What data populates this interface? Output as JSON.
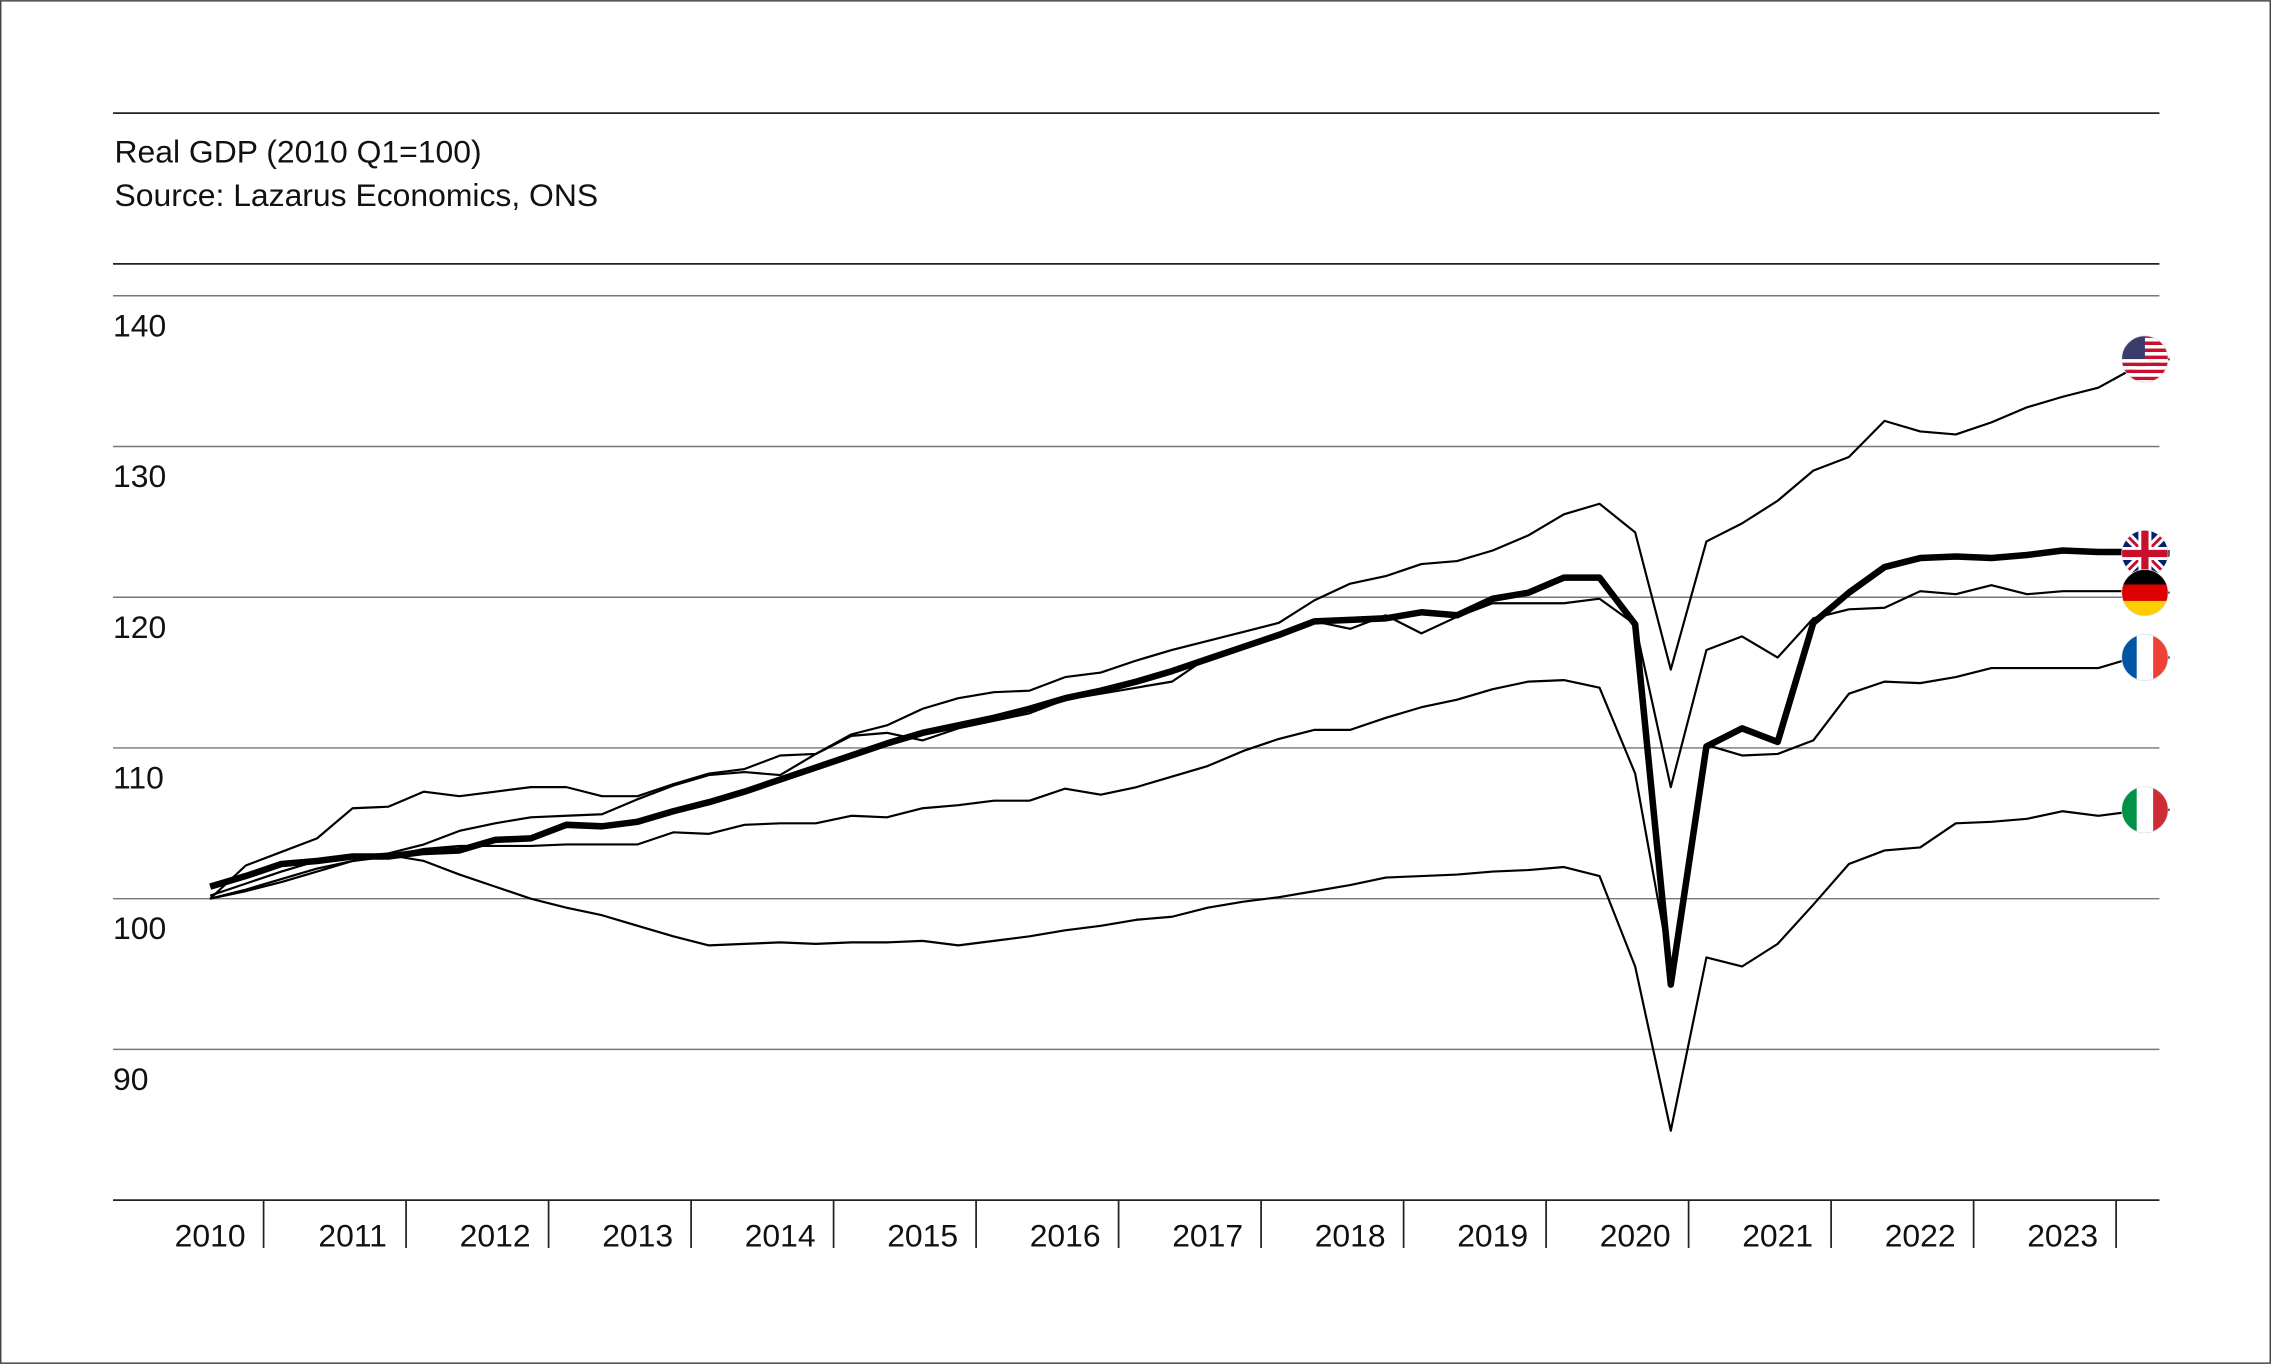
{
  "chart_data": {
    "type": "line",
    "title": "Real GDP (2010 Q1=100)",
    "subtitle": "Source: Lazarus Economics, ONS",
    "categories": [
      "2010",
      null,
      null,
      null,
      "2011",
      null,
      null,
      null,
      "2012",
      null,
      null,
      null,
      "2013",
      null,
      null,
      null,
      "2014",
      null,
      null,
      null,
      "2015",
      null,
      null,
      null,
      "2016",
      null,
      null,
      null,
      "2017",
      null,
      null,
      null,
      "2018",
      null,
      null,
      null,
      "2019",
      null,
      null,
      null,
      "2020",
      null,
      null,
      null,
      "2021",
      null,
      null,
      null,
      "2022",
      null,
      null,
      null,
      "2023",
      null,
      null,
      null
    ],
    "ylim": [
      80,
      140
    ],
    "yticks": [
      90,
      100,
      110,
      120,
      130,
      140
    ],
    "grid": true,
    "series": [
      {
        "color": "#000000",
        "line_width": 1.5,
        "values": [
          100.0,
          102.2,
          103.1,
          104.0,
          106.0,
          106.1,
          107.1,
          106.8,
          107.1,
          107.4,
          107.4,
          106.8,
          106.8,
          107.6,
          108.3,
          108.6,
          109.5,
          109.6,
          110.9,
          111.5,
          112.6,
          113.3,
          113.7,
          113.8,
          114.7,
          115.0,
          115.8,
          116.5,
          117.1,
          117.7,
          118.3,
          119.8,
          120.9,
          121.4,
          122.2,
          122.4,
          123.1,
          124.1,
          125.5,
          126.2,
          124.3,
          115.2,
          123.7,
          124.9,
          126.4,
          128.4,
          129.3,
          131.7,
          131.0,
          130.8,
          131.6,
          132.6,
          133.3,
          133.9,
          135.2,
          135.8
        ]
      },
      {
        "color": "#000000",
        "line_width": 4.5,
        "values": [
          100.8,
          101.5,
          102.3,
          102.5,
          102.8,
          102.8,
          103.1,
          103.2,
          103.9,
          104.0,
          104.9,
          104.8,
          105.1,
          105.8,
          106.4,
          107.1,
          107.9,
          108.7,
          109.5,
          110.3,
          111.0,
          111.5,
          112.0,
          112.6,
          113.3,
          113.8,
          114.4,
          115.1,
          115.9,
          116.7,
          117.5,
          118.4,
          118.5,
          118.6,
          119.0,
          118.8,
          119.9,
          120.3,
          121.3,
          121.3,
          118.2,
          94.3,
          110.1,
          111.3,
          110.4,
          118.3,
          120.3,
          122.0,
          122.6,
          122.7,
          122.6,
          122.8,
          123.1,
          123.0,
          123.0,
          122.9
        ]
      },
      {
        "color": "#000000",
        "line_width": 1.5,
        "values": [
          100.2,
          101.0,
          101.8,
          102.5,
          102.8,
          103.0,
          103.6,
          104.5,
          105.0,
          105.4,
          105.5,
          105.6,
          106.6,
          107.5,
          108.2,
          108.4,
          108.2,
          109.6,
          110.8,
          111.0,
          110.5,
          111.3,
          111.8,
          112.3,
          113.2,
          113.6,
          114.0,
          114.4,
          116.0,
          116.8,
          117.5,
          118.4,
          117.9,
          118.8,
          117.6,
          118.7,
          119.6,
          119.6,
          119.6,
          119.9,
          118.2,
          107.4,
          116.5,
          117.4,
          116.0,
          118.6,
          119.2,
          119.3,
          120.4,
          120.2,
          120.8,
          120.2,
          120.4,
          120.4,
          120.4,
          120.3
        ]
      },
      {
        "color": "#000000",
        "line_width": 1.5,
        "values": [
          100.0,
          100.5,
          101.1,
          101.8,
          102.5,
          102.8,
          103.3,
          103.5,
          103.5,
          103.5,
          103.6,
          103.6,
          103.6,
          104.4,
          104.3,
          104.9,
          105.0,
          105.0,
          105.5,
          105.4,
          106.0,
          106.2,
          106.5,
          106.5,
          107.3,
          106.9,
          107.4,
          108.1,
          108.8,
          109.8,
          110.6,
          111.2,
          111.2,
          112.0,
          112.7,
          113.2,
          113.9,
          114.4,
          114.5,
          114.0,
          108.3,
          95.2,
          110.2,
          109.5,
          109.6,
          110.5,
          113.6,
          114.4,
          114.3,
          114.7,
          115.3,
          115.3,
          115.3,
          115.3,
          116.0,
          116.0
        ]
      },
      {
        "color": "#000000",
        "line_width": 1.5,
        "values": [
          100.0,
          100.6,
          101.3,
          102.0,
          102.5,
          102.9,
          102.5,
          101.6,
          100.8,
          100.0,
          99.4,
          98.9,
          98.2,
          97.5,
          96.9,
          97.0,
          97.1,
          97.0,
          97.1,
          97.1,
          97.2,
          96.9,
          97.2,
          97.5,
          97.9,
          98.2,
          98.6,
          98.8,
          99.4,
          99.8,
          100.1,
          100.5,
          100.9,
          101.4,
          101.5,
          101.6,
          101.8,
          101.9,
          102.1,
          101.5,
          95.5,
          84.6,
          96.1,
          95.5,
          97.0,
          99.6,
          102.3,
          103.2,
          103.4,
          105.0,
          105.1,
          105.3,
          105.8,
          105.5,
          105.8,
          105.9
        ]
      }
    ]
  }
}
